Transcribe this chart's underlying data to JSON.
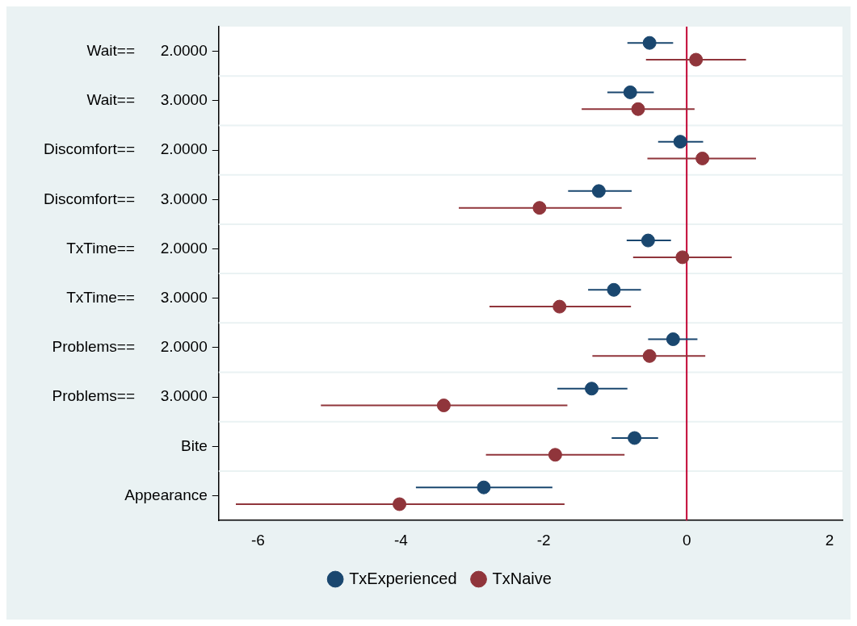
{
  "chart_data": {
    "type": "scatter",
    "orientation": "horizontal",
    "categories": [
      "Wait==      2.0000",
      "Wait==      3.0000",
      "Discomfort==      2.0000",
      "Discomfort==      3.0000",
      "TxTime==      2.0000",
      "TxTime==      3.0000",
      "Problems==      2.0000",
      "Problems==      3.0000",
      "Bite",
      "Appearance"
    ],
    "series": [
      {
        "name": "TxExperienced",
        "color": "#1a476f",
        "values": [
          -0.52,
          -0.79,
          -0.09,
          -1.23,
          -0.54,
          -1.02,
          -0.19,
          -1.33,
          -0.73,
          -2.84
        ],
        "errors": [
          [
            -0.83,
            -0.19
          ],
          [
            -1.11,
            -0.46
          ],
          [
            -0.4,
            0.23
          ],
          [
            -1.66,
            -0.77
          ],
          [
            -0.84,
            -0.22
          ],
          [
            -1.38,
            -0.64
          ],
          [
            -0.54,
            0.15
          ],
          [
            -1.81,
            -0.83
          ],
          [
            -1.05,
            -0.4
          ],
          [
            -3.79,
            -1.88
          ]
        ]
      },
      {
        "name": "TxNaive",
        "color": "#90353b",
        "values": [
          0.13,
          -0.68,
          0.22,
          -2.06,
          -0.06,
          -1.78,
          -0.52,
          -3.4,
          -1.84,
          -4.02
        ],
        "errors": [
          [
            -0.57,
            0.83
          ],
          [
            -1.47,
            0.11
          ],
          [
            -0.55,
            0.97
          ],
          [
            -3.19,
            -0.91
          ],
          [
            -0.75,
            0.63
          ],
          [
            -2.76,
            -0.78
          ],
          [
            -1.32,
            0.26
          ],
          [
            -5.12,
            -1.67
          ],
          [
            -2.81,
            -0.87
          ],
          [
            -6.31,
            -1.71
          ]
        ]
      }
    ],
    "xlim": [
      -6.55,
      2.18
    ],
    "xticks": [
      -6,
      -4,
      -2,
      0,
      2
    ],
    "ref_lines": [
      {
        "axis": "x",
        "value": 0,
        "color": "#c10534"
      }
    ],
    "grid": "y",
    "legend": "bottom",
    "marker": "circle"
  }
}
